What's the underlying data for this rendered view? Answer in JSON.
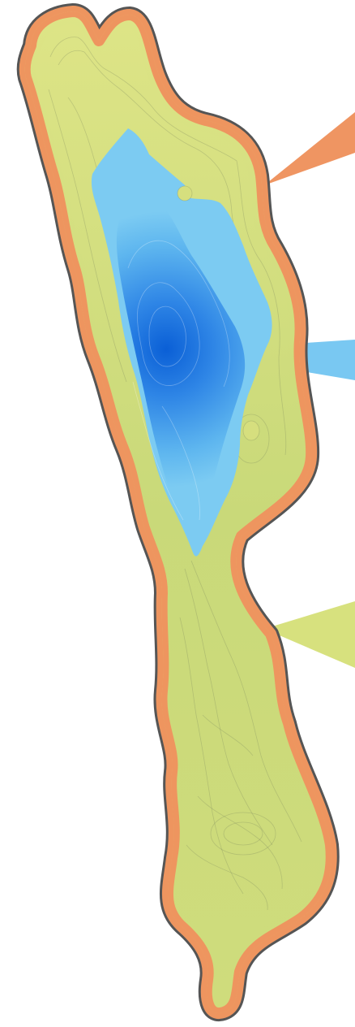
{
  "map": {
    "type": "lake-bathymetry",
    "labels": [],
    "zones": [
      {
        "name": "shoreline-band",
        "color": "#ee955f"
      },
      {
        "name": "shallow-water",
        "color": "#d6df7e"
      },
      {
        "name": "mid-depth-water",
        "color": "#7ccbf2"
      },
      {
        "name": "deepest-water",
        "color": "#0a5fd6"
      }
    ],
    "pointers": [
      {
        "name": "shoreline-callout",
        "color": "#ef9562"
      },
      {
        "name": "deep-basin-callout",
        "color": "#79c8f2"
      },
      {
        "name": "shallow-callout",
        "color": "#d7e17e"
      }
    ],
    "colors": {
      "outline": "#555555",
      "contour": "#6f7a5a"
    }
  }
}
